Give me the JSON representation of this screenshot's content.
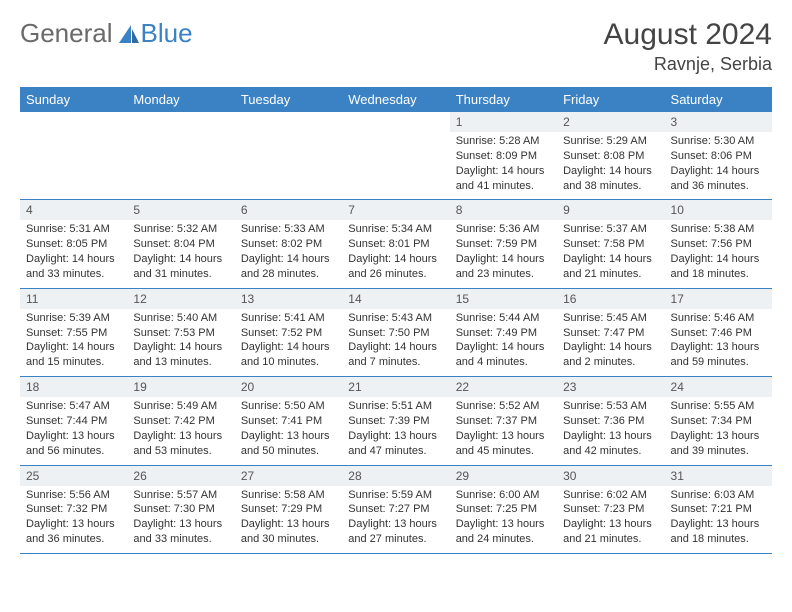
{
  "brand": {
    "word1": "General",
    "word2": "Blue"
  },
  "title": "August 2024",
  "location": "Ravnje, Serbia",
  "colors": {
    "accent": "#3b82c4",
    "headerText": "#ffffff",
    "dayStripe": "#eef1f4",
    "bodyText": "#333333",
    "titleText": "#444444",
    "logoGray": "#6a6a6a"
  },
  "weekdays": [
    "Sunday",
    "Monday",
    "Tuesday",
    "Wednesday",
    "Thursday",
    "Friday",
    "Saturday"
  ],
  "weeks": [
    [
      null,
      null,
      null,
      null,
      {
        "n": 1,
        "sr": "5:28 AM",
        "ss": "8:09 PM",
        "dl": "14 hours and 41 minutes."
      },
      {
        "n": 2,
        "sr": "5:29 AM",
        "ss": "8:08 PM",
        "dl": "14 hours and 38 minutes."
      },
      {
        "n": 3,
        "sr": "5:30 AM",
        "ss": "8:06 PM",
        "dl": "14 hours and 36 minutes."
      }
    ],
    [
      {
        "n": 4,
        "sr": "5:31 AM",
        "ss": "8:05 PM",
        "dl": "14 hours and 33 minutes."
      },
      {
        "n": 5,
        "sr": "5:32 AM",
        "ss": "8:04 PM",
        "dl": "14 hours and 31 minutes."
      },
      {
        "n": 6,
        "sr": "5:33 AM",
        "ss": "8:02 PM",
        "dl": "14 hours and 28 minutes."
      },
      {
        "n": 7,
        "sr": "5:34 AM",
        "ss": "8:01 PM",
        "dl": "14 hours and 26 minutes."
      },
      {
        "n": 8,
        "sr": "5:36 AM",
        "ss": "7:59 PM",
        "dl": "14 hours and 23 minutes."
      },
      {
        "n": 9,
        "sr": "5:37 AM",
        "ss": "7:58 PM",
        "dl": "14 hours and 21 minutes."
      },
      {
        "n": 10,
        "sr": "5:38 AM",
        "ss": "7:56 PM",
        "dl": "14 hours and 18 minutes."
      }
    ],
    [
      {
        "n": 11,
        "sr": "5:39 AM",
        "ss": "7:55 PM",
        "dl": "14 hours and 15 minutes."
      },
      {
        "n": 12,
        "sr": "5:40 AM",
        "ss": "7:53 PM",
        "dl": "14 hours and 13 minutes."
      },
      {
        "n": 13,
        "sr": "5:41 AM",
        "ss": "7:52 PM",
        "dl": "14 hours and 10 minutes."
      },
      {
        "n": 14,
        "sr": "5:43 AM",
        "ss": "7:50 PM",
        "dl": "14 hours and 7 minutes."
      },
      {
        "n": 15,
        "sr": "5:44 AM",
        "ss": "7:49 PM",
        "dl": "14 hours and 4 minutes."
      },
      {
        "n": 16,
        "sr": "5:45 AM",
        "ss": "7:47 PM",
        "dl": "14 hours and 2 minutes."
      },
      {
        "n": 17,
        "sr": "5:46 AM",
        "ss": "7:46 PM",
        "dl": "13 hours and 59 minutes."
      }
    ],
    [
      {
        "n": 18,
        "sr": "5:47 AM",
        "ss": "7:44 PM",
        "dl": "13 hours and 56 minutes."
      },
      {
        "n": 19,
        "sr": "5:49 AM",
        "ss": "7:42 PM",
        "dl": "13 hours and 53 minutes."
      },
      {
        "n": 20,
        "sr": "5:50 AM",
        "ss": "7:41 PM",
        "dl": "13 hours and 50 minutes."
      },
      {
        "n": 21,
        "sr": "5:51 AM",
        "ss": "7:39 PM",
        "dl": "13 hours and 47 minutes."
      },
      {
        "n": 22,
        "sr": "5:52 AM",
        "ss": "7:37 PM",
        "dl": "13 hours and 45 minutes."
      },
      {
        "n": 23,
        "sr": "5:53 AM",
        "ss": "7:36 PM",
        "dl": "13 hours and 42 minutes."
      },
      {
        "n": 24,
        "sr": "5:55 AM",
        "ss": "7:34 PM",
        "dl": "13 hours and 39 minutes."
      }
    ],
    [
      {
        "n": 25,
        "sr": "5:56 AM",
        "ss": "7:32 PM",
        "dl": "13 hours and 36 minutes."
      },
      {
        "n": 26,
        "sr": "5:57 AM",
        "ss": "7:30 PM",
        "dl": "13 hours and 33 minutes."
      },
      {
        "n": 27,
        "sr": "5:58 AM",
        "ss": "7:29 PM",
        "dl": "13 hours and 30 minutes."
      },
      {
        "n": 28,
        "sr": "5:59 AM",
        "ss": "7:27 PM",
        "dl": "13 hours and 27 minutes."
      },
      {
        "n": 29,
        "sr": "6:00 AM",
        "ss": "7:25 PM",
        "dl": "13 hours and 24 minutes."
      },
      {
        "n": 30,
        "sr": "6:02 AM",
        "ss": "7:23 PM",
        "dl": "13 hours and 21 minutes."
      },
      {
        "n": 31,
        "sr": "6:03 AM",
        "ss": "7:21 PM",
        "dl": "13 hours and 18 minutes."
      }
    ]
  ],
  "labels": {
    "sunrise": "Sunrise:",
    "sunset": "Sunset:",
    "daylight": "Daylight:"
  }
}
